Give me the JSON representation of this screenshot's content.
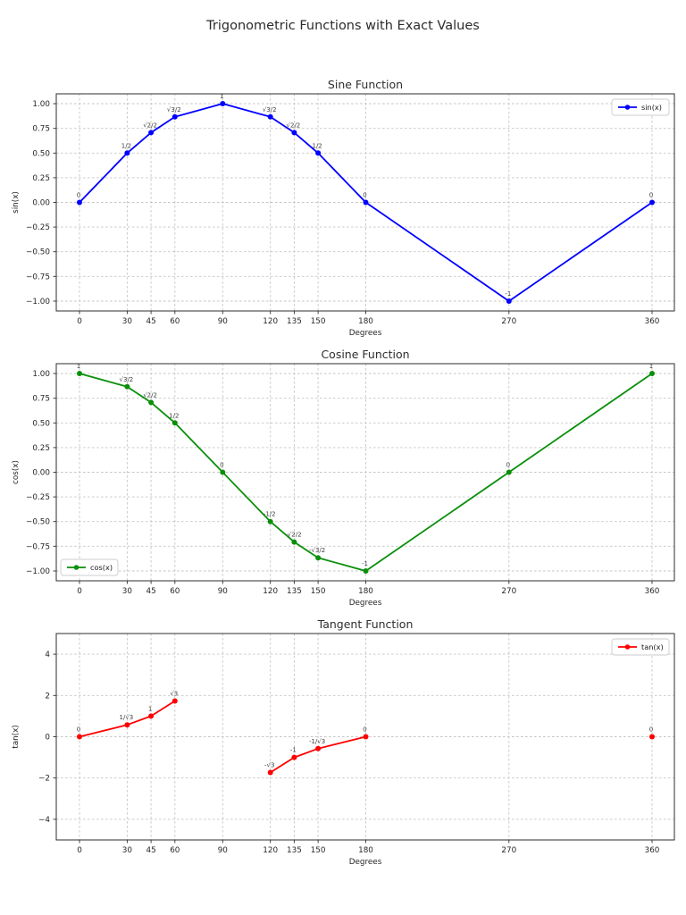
{
  "figure_title": "Trigonometric Functions with Exact Values",
  "colors": {
    "sine": "#0000ff",
    "cosine": "#0a8f0a",
    "tangent": "#ff0000",
    "grid": "#c6c6c6",
    "axis": "#2e2e2e"
  },
  "chart_data": [
    {
      "type": "line",
      "title": "Sine Function",
      "xlabel": "Degrees",
      "ylabel": "sin(x)",
      "color": "#0000ff",
      "grid": true,
      "legend": {
        "label": "sin(x)",
        "position": "top-right"
      },
      "xlim": [
        -13,
        374
      ],
      "ylim": [
        -1.1,
        1.1
      ],
      "x_tick_labels": [
        "0",
        "30",
        "45",
        "60",
        "90",
        "120",
        "135",
        "150",
        "180",
        "270",
        "360"
      ],
      "x_tick_values": [
        0,
        30,
        45,
        60,
        90,
        120,
        135,
        150,
        180,
        270,
        360
      ],
      "y_tick_labels": [
        "1.00",
        "0.75",
        "0.50",
        "0.25",
        "0.00",
        "−0.25",
        "−0.50",
        "−0.75",
        "−1.00"
      ],
      "y_tick_values": [
        1,
        0.75,
        0.5,
        0.25,
        0,
        -0.25,
        -0.5,
        -0.75,
        -1
      ],
      "segments": [
        {
          "x": [
            0,
            30,
            45,
            60,
            90,
            120,
            135,
            150,
            180,
            270,
            360
          ],
          "y": [
            0,
            0.5,
            0.7071,
            0.866,
            1,
            0.866,
            0.7071,
            0.5,
            0,
            -1,
            0
          ],
          "labels": [
            "0",
            "1/2",
            "√2/2",
            "√3/2",
            "1",
            "√3/2",
            "√2/2",
            "1/2",
            "0",
            "-1",
            "0"
          ]
        }
      ]
    },
    {
      "type": "line",
      "title": "Cosine Function",
      "xlabel": "Degrees",
      "ylabel": "cos(x)",
      "color": "#0a8f0a",
      "grid": true,
      "legend": {
        "label": "cos(x)",
        "position": "bottom-left"
      },
      "xlim": [
        -13,
        374
      ],
      "ylim": [
        -1.1,
        1.1
      ],
      "x_tick_labels": [
        "0",
        "30",
        "45",
        "60",
        "90",
        "120",
        "135",
        "150",
        "180",
        "270",
        "360"
      ],
      "x_tick_values": [
        0,
        30,
        45,
        60,
        90,
        120,
        135,
        150,
        180,
        270,
        360
      ],
      "y_tick_labels": [
        "1.00",
        "0.75",
        "0.50",
        "0.25",
        "0.00",
        "−0.25",
        "−0.50",
        "−0.75",
        "−1.00"
      ],
      "y_tick_values": [
        1,
        0.75,
        0.5,
        0.25,
        0,
        -0.25,
        -0.5,
        -0.75,
        -1
      ],
      "segments": [
        {
          "x": [
            0,
            30,
            45,
            60,
            90,
            120,
            135,
            150,
            180,
            270,
            360
          ],
          "y": [
            1,
            0.866,
            0.7071,
            0.5,
            0,
            -0.5,
            -0.7071,
            -0.866,
            -1,
            0,
            1
          ],
          "labels": [
            "1",
            "√3/2",
            "√2/2",
            "1/2",
            "0",
            "-1/2",
            "-√2/2",
            "-√3/2",
            "-1",
            "0",
            "1"
          ]
        }
      ]
    },
    {
      "type": "line",
      "title": "Tangent Function",
      "xlabel": "Degrees",
      "ylabel": "tan(x)",
      "color": "#ff0000",
      "grid": true,
      "legend": {
        "label": "tan(x)",
        "position": "top-right"
      },
      "xlim": [
        -13,
        374
      ],
      "ylim": [
        -5,
        5
      ],
      "x_tick_labels": [
        "0",
        "30",
        "45",
        "60",
        "90",
        "120",
        "135",
        "150",
        "180",
        "270",
        "360"
      ],
      "x_tick_values": [
        0,
        30,
        45,
        60,
        90,
        120,
        135,
        150,
        180,
        270,
        360
      ],
      "y_tick_labels": [
        "4",
        "2",
        "0",
        "−2",
        "−4"
      ],
      "y_tick_values": [
        4,
        2,
        0,
        -2,
        -4
      ],
      "segments": [
        {
          "x": [
            0,
            30,
            45,
            60
          ],
          "y": [
            0,
            0.5774,
            1,
            1.7321
          ],
          "labels": [
            "0",
            "1/√3",
            "1",
            "√3"
          ]
        },
        {
          "x": [
            120,
            135,
            150,
            180
          ],
          "y": [
            -1.7321,
            -1,
            -0.5774,
            0
          ],
          "labels": [
            "-√3",
            "-1",
            "-1/√3",
            "0"
          ]
        },
        {
          "x": [
            360
          ],
          "y": [
            0
          ],
          "labels": [
            "0"
          ]
        }
      ]
    }
  ]
}
